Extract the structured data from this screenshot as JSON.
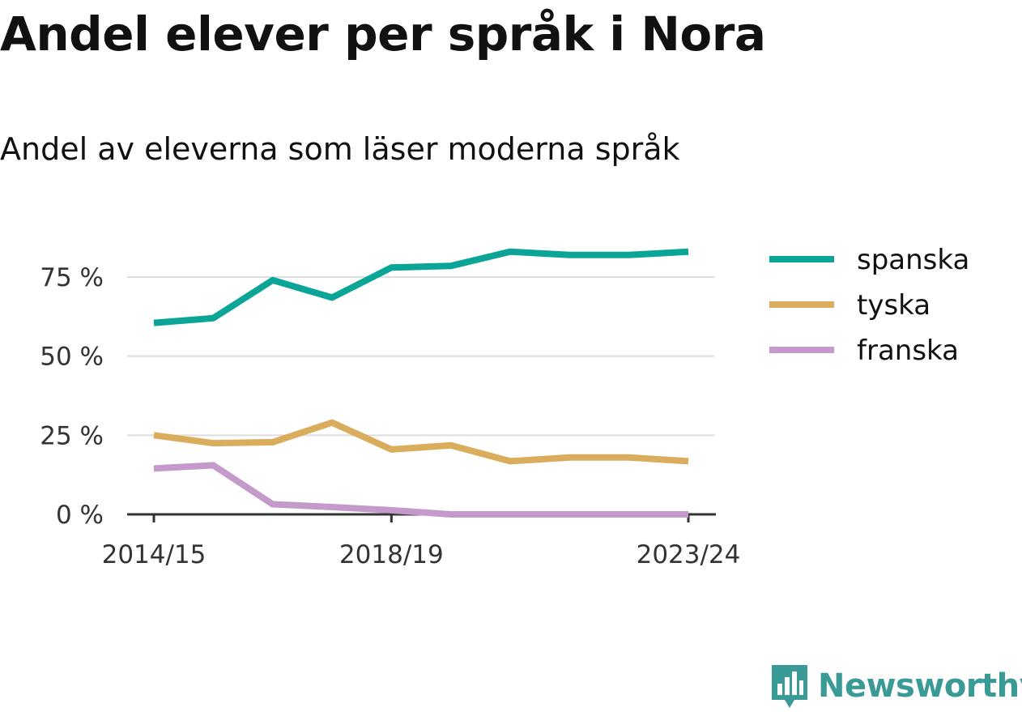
{
  "title": "Andel elever per språk i Nora",
  "subtitle": "Andel av eleverna som läser moderna språk",
  "brand": {
    "name": "Newsworthy",
    "color": "#3a9a96",
    "icon": "bar-chart-speech-bubble-icon"
  },
  "chart_data": {
    "type": "line",
    "x": [
      "2014/15",
      "2015/16",
      "2016/17",
      "2017/18",
      "2018/19",
      "2019/20",
      "2020/21",
      "2021/22",
      "2022/23",
      "2023/24"
    ],
    "xticks": [
      "2014/15",
      "2018/19",
      "2023/24"
    ],
    "yticks": [
      "0 %",
      "25 %",
      "50 %",
      "75 %"
    ],
    "ytick_values": [
      0,
      25,
      50,
      75
    ],
    "ylim": [
      0,
      90
    ],
    "grid": true,
    "legend_position": "top-right",
    "series": [
      {
        "name": "spanska",
        "color": "#0ba597",
        "values": [
          60.5,
          62,
          74,
          68.5,
          78,
          78.5,
          83,
          82,
          82,
          83
        ]
      },
      {
        "name": "tyska",
        "color": "#d9ad5b",
        "values": [
          25,
          22.5,
          22.8,
          29,
          20.5,
          21.8,
          16.8,
          18,
          18,
          16.8
        ]
      },
      {
        "name": "franska",
        "color": "#c49acb",
        "values": [
          14.5,
          15.5,
          3.2,
          2.3,
          1.3,
          0,
          0,
          0,
          0,
          0
        ]
      }
    ]
  }
}
